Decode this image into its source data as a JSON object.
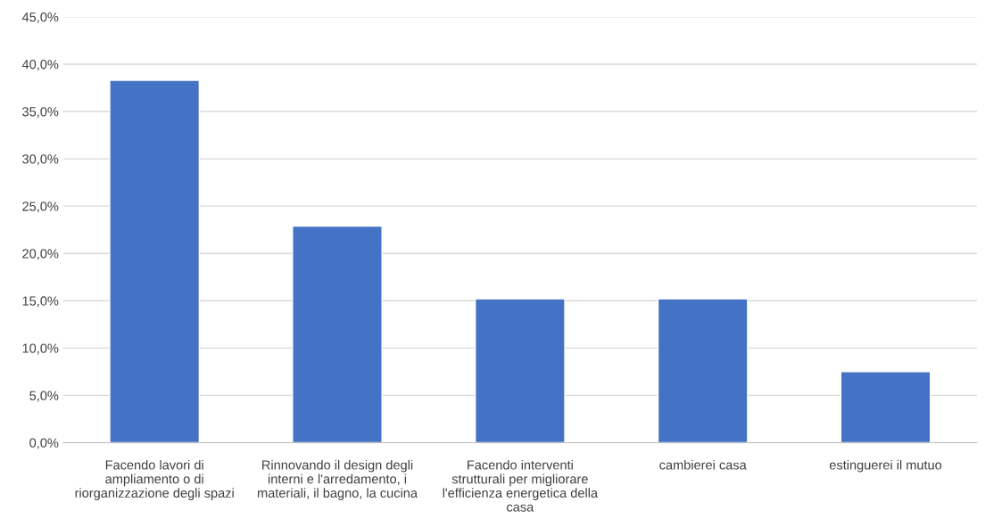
{
  "chart_data": {
    "type": "bar",
    "categories": [
      "Facendo lavori di\nampliamento o di\nriorganizzazione degli spazi",
      "Rinnovando il design degli\ninterni e l'arredamento, i\nmateriali, il bagno, la cucina",
      "Facendo interventi\nstrutturali per migliorare\nl'efficienza energetica della\ncasa",
      "cambierei casa",
      "estinguerei il mutuo"
    ],
    "values": [
      38.3,
      22.9,
      15.2,
      15.2,
      7.5
    ],
    "color": "#4472c4",
    "ylim": [
      0,
      45
    ],
    "yticks": [
      {
        "value": 0,
        "label": "0,0%"
      },
      {
        "value": 5,
        "label": "5,0%"
      },
      {
        "value": 10,
        "label": "10,0%"
      },
      {
        "value": 15,
        "label": "15,0%"
      },
      {
        "value": 20,
        "label": "20,0%"
      },
      {
        "value": 25,
        "label": "25,0%"
      },
      {
        "value": 30,
        "label": "30,0%"
      },
      {
        "value": 35,
        "label": "35,0%"
      },
      {
        "value": 40,
        "label": "40,0%"
      },
      {
        "value": 45,
        "label": "45,0%"
      }
    ],
    "grid": "y"
  }
}
